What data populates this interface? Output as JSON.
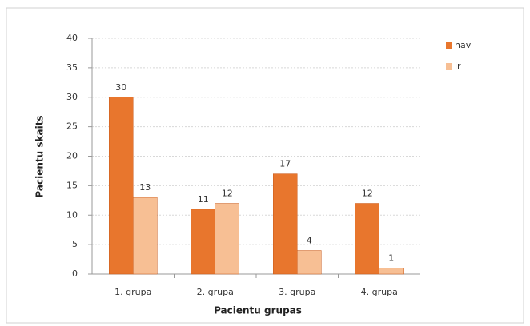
{
  "chart_data": {
    "type": "bar",
    "x_label": "Pacientu grupas",
    "y_label": "Pacientu skaits",
    "categories": [
      "1. grupa",
      "2. grupa",
      "3. grupa",
      "4. grupa"
    ],
    "series": [
      {
        "name": "nav",
        "color": "#e8762d",
        "values": [
          30,
          11,
          17,
          12
        ]
      },
      {
        "name": "ir",
        "color": "#f7bf94",
        "values": [
          13,
          12,
          4,
          1
        ]
      }
    ],
    "ylim": [
      0,
      40
    ],
    "yticks": [
      0,
      5,
      10,
      15,
      20,
      25,
      30,
      35,
      40
    ],
    "grid": true,
    "legend": "right",
    "data_labels": true
  }
}
